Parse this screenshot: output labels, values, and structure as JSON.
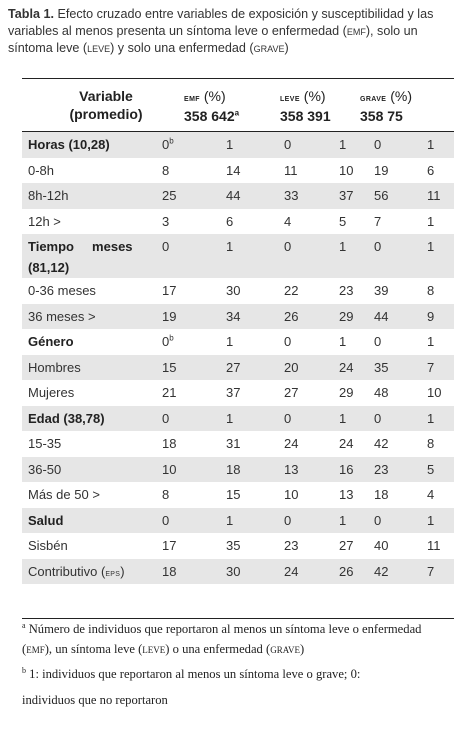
{
  "caption": {
    "label": "Tabla 1.",
    "text_a": " Efecto cruzado entre variables de exposición y susceptibilidad y las variables al menos presenta un síntoma leve o enfermedad (",
    "sc_emf": "emf",
    "text_b": "), solo un síntoma leve (",
    "sc_leve": "leve",
    "text_c": ") y solo una enfermedad (",
    "sc_grave": "grave",
    "text_d": ")"
  },
  "header": {
    "variable_line1": "Variable",
    "variable_line2": "(promedio)",
    "emf_label": "emf",
    "emf_pct": " (%)",
    "emf_n": "358 642",
    "emf_sup": "a",
    "leve_label": "leve",
    "leve_pct": " (%)",
    "leve_n": "358 391",
    "grave_label": "grave",
    "grave_pct": " (%)",
    "grave_n": "358 75"
  },
  "rows": [
    {
      "var": "Horas (10,28)",
      "v1": "0",
      "v1sup": "b",
      "v2": "1",
      "v3": "0",
      "v4": "1",
      "v5": "0",
      "v6": "1"
    },
    {
      "var": "0-8h",
      "v1": "8",
      "v2": "14",
      "v3": "11",
      "v4": "10",
      "v5": "19",
      "v6": "6"
    },
    {
      "var": "8h-12h",
      "v1": "25",
      "v2": "44",
      "v3": "33",
      "v4": "37",
      "v5": "56",
      "v6": "11"
    },
    {
      "var": "12h >",
      "v1": "3",
      "v2": "6",
      "v3": "4",
      "v4": "5",
      "v5": "7",
      "v6": "1"
    },
    {
      "var_l1": "Tiempo     meses",
      "var_l2": "(81,12)",
      "v1": "0",
      "v2": "1",
      "v3": "0",
      "v4": "1",
      "v5": "0",
      "v6": "1"
    },
    {
      "var": "0-36 meses",
      "v1": "17",
      "v2": "30",
      "v3": "22",
      "v4": "23",
      "v5": "39",
      "v6": "8"
    },
    {
      "var": "36 meses >",
      "v1": "19",
      "v2": "34",
      "v3": "26",
      "v4": "29",
      "v5": "44",
      "v6": "9"
    },
    {
      "var": "Género",
      "v1": "0",
      "v1sup": "b",
      "v2": "1",
      "v3": "0",
      "v4": "1",
      "v5": "0",
      "v6": "1"
    },
    {
      "var": "Hombres",
      "v1": "15",
      "v2": "27",
      "v3": "20",
      "v4": "24",
      "v5": "35",
      "v6": "7"
    },
    {
      "var": "Mujeres",
      "v1": "21",
      "v2": "37",
      "v3": "27",
      "v4": "29",
      "v5": "48",
      "v6": "10"
    },
    {
      "var": "Edad (38,78)",
      "v1": "0",
      "v2": "1",
      "v3": "0",
      "v4": "1",
      "v5": "0",
      "v6": "1"
    },
    {
      "var": "15-35",
      "v1": "18",
      "v2": "31",
      "v3": "24",
      "v4": "24",
      "v5": "42",
      "v6": "8"
    },
    {
      "var": "36-50",
      "v1": "10",
      "v2": "18",
      "v3": "13",
      "v4": "16",
      "v5": "23",
      "v6": "5"
    },
    {
      "var": "Más de 50 >",
      "v1": "8",
      "v2": "15",
      "v3": "10",
      "v4": "13",
      "v5": "18",
      "v6": "4"
    },
    {
      "var": "Salud",
      "v1": "0",
      "v2": "1",
      "v3": "0",
      "v4": "1",
      "v5": "0",
      "v6": "1"
    },
    {
      "var": "Sisbén",
      "v1": "17",
      "v2": "35",
      "v3": "23",
      "v4": "27",
      "v5": "40",
      "v6": "11"
    },
    {
      "var_pre": "Contributivo (",
      "var_sc": "eps",
      "var_post": ")",
      "v1": "18",
      "v2": "30",
      "v3": "24",
      "v4": "26",
      "v5": "42",
      "v6": "7"
    }
  ],
  "notes": {
    "a_sup": "a",
    "a_text1": " Número de individuos que reportaron al menos un síntoma leve o enfermedad (",
    "a_sc1": "emf",
    "a_text2": "), un síntoma leve (",
    "a_sc2": "leve",
    "a_text3": ") o una enfermedad (",
    "a_sc3": "grave",
    "a_text4": ")",
    "b_sup": "b",
    "b_text1": " 1: individuos que reportaron al menos un síntoma leve o grave; 0:",
    "b_text2": "individuos que no reportaron"
  }
}
